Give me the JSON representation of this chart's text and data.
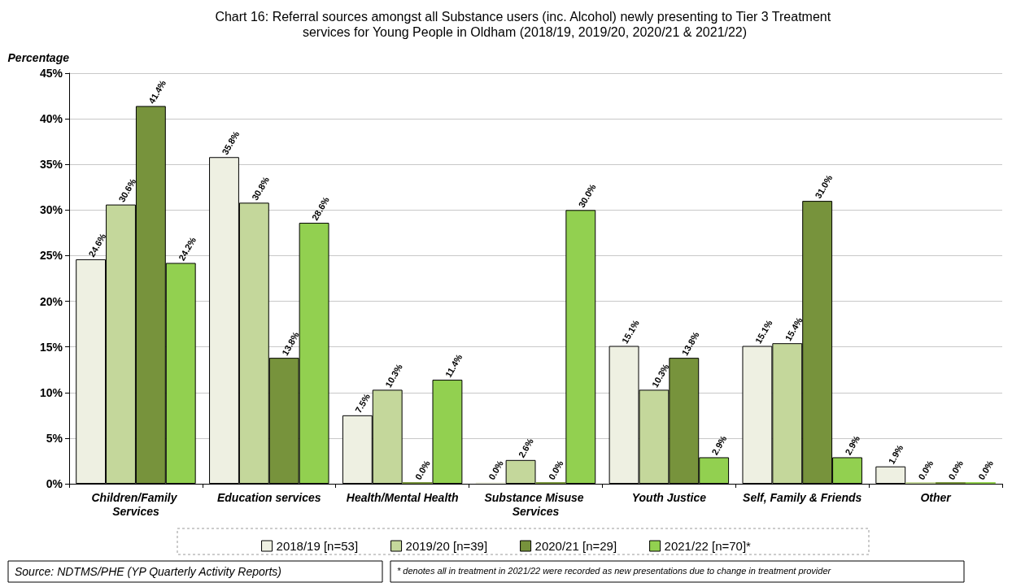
{
  "chart_data": {
    "type": "bar",
    "title": "Chart 16: Referral sources amongst all Substance users (inc. Alcohol) newly presenting to Tier 3 Treatment services for Young People in Oldham (2018/19, 2019/20, 2020/21 & 2021/22)",
    "ylabel": "Percentage",
    "categories": [
      "Children/Family Services",
      "Education services",
      "Health/Mental Health",
      "Substance Misuse Services",
      "Youth Justice",
      "Self, Family & Friends",
      "Other"
    ],
    "series": [
      {
        "name": "2018/19 [n=53]",
        "color": "#eef0e2",
        "values": [
          24.6,
          35.8,
          7.5,
          0.0,
          15.1,
          15.1,
          1.9
        ],
        "value_labels": [
          "24.6%",
          "35.8%",
          "7.5%",
          "0.0%",
          "15.1%",
          "15.1%",
          "1.9%"
        ]
      },
      {
        "name": "2019/20 [n=39]",
        "color": "#c4d79b",
        "values": [
          30.6,
          30.8,
          10.3,
          2.6,
          10.3,
          15.4,
          0.0
        ],
        "value_labels": [
          "30.6%",
          "30.8%",
          "10.3%",
          "2.6%",
          "10.3%",
          "15.4%",
          "0.0%"
        ]
      },
      {
        "name": "2020/21 [n=29]",
        "color": "#77933c",
        "values": [
          41.4,
          13.8,
          0.0,
          0.0,
          13.8,
          31.0,
          0.0
        ],
        "value_labels": [
          "41.4%",
          "13.8%",
          "0.0%",
          "0.0%",
          "13.8%",
          "31.0%",
          "0.0%"
        ]
      },
      {
        "name": "2021/22 [n=70]*",
        "color": "#92d050",
        "values": [
          24.2,
          28.6,
          11.4,
          30.0,
          2.9,
          2.9,
          0.0
        ],
        "value_labels": [
          "24.2%",
          "28.6%",
          "11.4%",
          "30.0%",
          "2.9%",
          "2.9%",
          "0.0%"
        ]
      }
    ],
    "ylim": [
      0,
      45
    ],
    "yticks": [
      {
        "value": 0,
        "label": "0%"
      },
      {
        "value": 5,
        "label": "5%"
      },
      {
        "value": 10,
        "label": "10%"
      },
      {
        "value": 15,
        "label": "15%"
      },
      {
        "value": 20,
        "label": "20%"
      },
      {
        "value": 25,
        "label": "25%"
      },
      {
        "value": 30,
        "label": "30%"
      },
      {
        "value": 35,
        "label": "35%"
      },
      {
        "value": 40,
        "label": "40%"
      },
      {
        "value": 45,
        "label": "45%"
      }
    ],
    "grid": "y",
    "legend": "bottom",
    "annotations": [
      "Source: NDTMS/PHE (YP Quarterly Activity Reports)",
      "* denotes all in treatment in 2021/22 were recorded as new presentations due to change in treatment provider"
    ]
  }
}
